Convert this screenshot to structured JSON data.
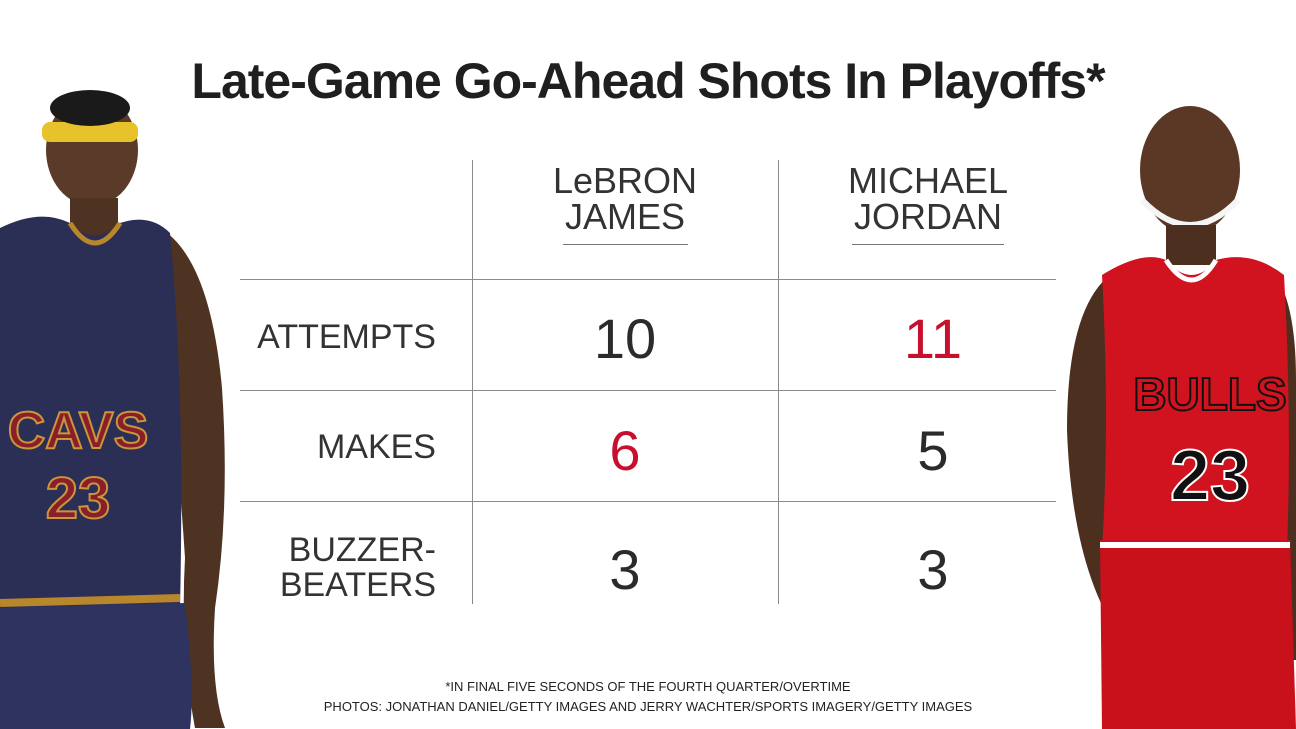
{
  "title": "Late-Game Go-Ahead Shots In Playoffs*",
  "colors": {
    "highlight": "#c8102e",
    "text": "#2b2b2b",
    "cavs_wine": "#2b2f55",
    "cavs_gold": "#b8862b",
    "bulls_red": "#d0131e"
  },
  "chart_data": {
    "type": "table",
    "columns": [
      {
        "line1": "LeBRON",
        "line2": "JAMES"
      },
      {
        "line1": "MICHAEL",
        "line2": "JORDAN"
      }
    ],
    "rows": [
      {
        "label": "ATTEMPTS",
        "values": [
          "10",
          "11"
        ],
        "highlight_index": 1
      },
      {
        "label": "MAKES",
        "values": [
          "6",
          "5"
        ],
        "highlight_index": 0
      },
      {
        "label_line1": "BUZZER-",
        "label_line2": "BEATERS",
        "values": [
          "3",
          "3"
        ],
        "highlight_index": -1
      }
    ]
  },
  "players": {
    "left": {
      "jersey_text": "CAVS",
      "number": "23"
    },
    "right": {
      "jersey_text": "BULLS",
      "number": "23"
    }
  },
  "footnotes": {
    "line1": "*IN FINAL FIVE SECONDS OF THE FOURTH QUARTER/OVERTIME",
    "line2": "PHOTOS: JONATHAN DANIEL/GETTY IMAGES AND JERRY WACHTER/SPORTS IMAGERY/GETTY IMAGES"
  }
}
